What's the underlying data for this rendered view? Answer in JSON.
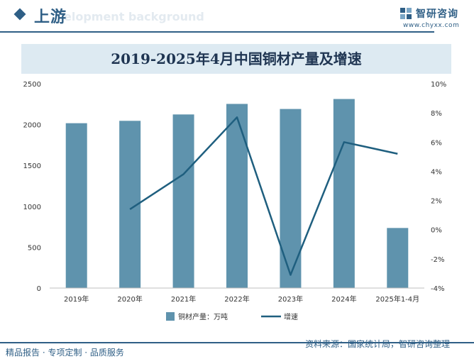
{
  "header": {
    "title": "上游",
    "subtitle_ghost": "elopment background"
  },
  "brand": {
    "name": "智研咨询",
    "url": "www.chyxx.com"
  },
  "footer": {
    "left": "精品报告 · 专项定制 · 品质服务",
    "source": "资料来源：国家统计局，智研咨询整理"
  },
  "colors": {
    "bar": "#5f93ad",
    "line": "#1f5f7f",
    "accent": "#2f5f86"
  },
  "chart_data": {
    "type": "bar",
    "title": "2019-2025年4月中国铜材产量及增速",
    "categories": [
      "2019年",
      "2020年",
      "2021年",
      "2022年",
      "2023年",
      "2024年",
      "2025年1-4月"
    ],
    "series": [
      {
        "name": "铜材产量：万吨",
        "type": "bar",
        "axis": "left",
        "values": [
          2017,
          2046,
          2124,
          2253,
          2191,
          2313,
          735
        ]
      },
      {
        "name": "增速",
        "type": "line",
        "axis": "right",
        "values": [
          null,
          1.4,
          3.8,
          7.7,
          -3.1,
          6.0,
          5.2
        ]
      }
    ],
    "y_left": {
      "min": 0,
      "max": 2500,
      "ticks": [
        "0",
        "500",
        "1000",
        "1500",
        "2000",
        "2500"
      ]
    },
    "y_right": {
      "min": -4,
      "max": 10,
      "ticks": [
        "-4%",
        "-2%",
        "0%",
        "2%",
        "4%",
        "6%",
        "8%",
        "10%"
      ]
    },
    "grid": false,
    "legend": "bottom-center"
  }
}
